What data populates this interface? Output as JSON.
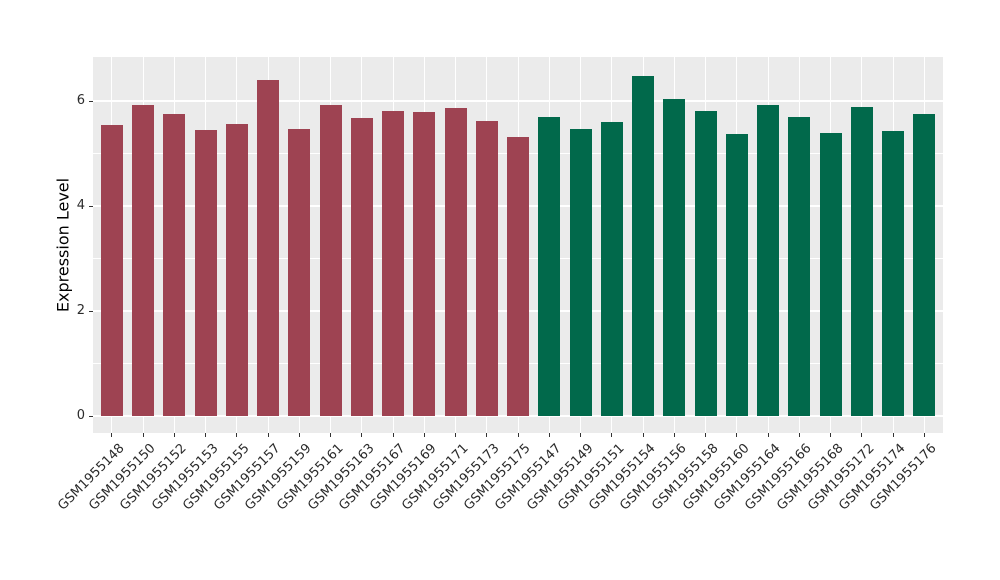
{
  "chart_data": {
    "type": "bar",
    "title": "",
    "xlabel": "",
    "ylabel": "Expression Level",
    "ylim": [
      0,
      6.84
    ],
    "yticks": [
      0,
      2,
      4,
      6
    ],
    "ytick_labels": [
      "0",
      "2",
      "4",
      "6"
    ],
    "yminor": [
      1,
      3,
      5
    ],
    "grid": "on",
    "legend_position": "none",
    "categories": [
      "GSM1955148",
      "GSM1955150",
      "GSM1955152",
      "GSM1955153",
      "GSM1955155",
      "GSM1955157",
      "GSM1955159",
      "GSM1955161",
      "GSM1955163",
      "GSM1955167",
      "GSM1955169",
      "GSM1955171",
      "GSM1955173",
      "GSM1955175",
      "GSM1955147",
      "GSM1955149",
      "GSM1955151",
      "GSM1955154",
      "GSM1955156",
      "GSM1955158",
      "GSM1955160",
      "GSM1955164",
      "GSM1955166",
      "GSM1955168",
      "GSM1955172",
      "GSM1955174",
      "GSM1955176"
    ],
    "values": [
      5.55,
      5.93,
      5.75,
      5.45,
      5.56,
      6.4,
      5.47,
      5.92,
      5.68,
      5.81,
      5.79,
      5.87,
      5.62,
      5.31,
      5.7,
      5.47,
      5.6,
      6.47,
      6.03,
      5.81,
      5.38,
      5.93,
      5.69,
      5.39,
      5.88,
      5.43,
      5.75
    ],
    "groups": [
      "group1",
      "group1",
      "group1",
      "group1",
      "group1",
      "group1",
      "group1",
      "group1",
      "group1",
      "group1",
      "group1",
      "group1",
      "group1",
      "group1",
      "group2",
      "group2",
      "group2",
      "group2",
      "group2",
      "group2",
      "group2",
      "group2",
      "group2",
      "group2",
      "group2",
      "group2",
      "group2"
    ],
    "group_colors": {
      "group1": "#9E4352",
      "group2": "#01694B"
    }
  },
  "style": {
    "panel_background": "#EBEBEB",
    "grid_color": "#FFFFFF",
    "axis_text_color": "#2b2b2b",
    "tick_mark_color": "#333333",
    "figure_background": "#FFFFFF"
  }
}
